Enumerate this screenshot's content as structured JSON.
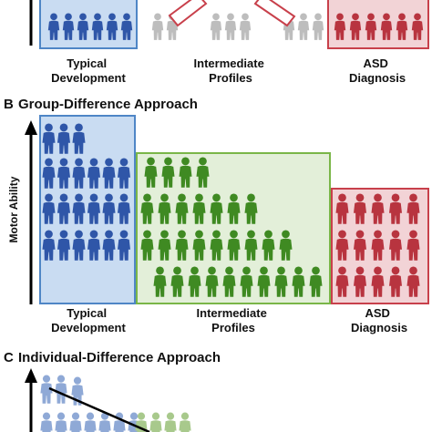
{
  "colors": {
    "typical_fill": "#c9dcf2",
    "typical_stroke": "#4f86c6",
    "typical_figure": "#2f56a8",
    "typical_figure_faded": "#8fa9d6",
    "intermediate_fill": "#e3efd9",
    "intermediate_stroke": "#7ab648",
    "intermediate_figure": "#3f8a22",
    "intermediate_figure_faded": "#a8c98c",
    "asd_fill": "#f2d3d6",
    "asd_stroke": "#c8404b",
    "asd_figure": "#b8343f",
    "gray_figure": "#bdbdbd",
    "axis": "#000000",
    "slope_line": "#000000"
  },
  "panel_a": {
    "label_typical": "Typical\nDevelopment",
    "label_intermediate": "Intermediate\nProfiles",
    "label_asd": "ASD\nDiagnosis"
  },
  "panel_b": {
    "letter": "B",
    "title": "Group-Difference Approach",
    "y_axis_label": "Motor Ability",
    "label_typical": "Typical\nDevelopment",
    "label_intermediate": "Intermediate\nProfiles",
    "label_asd": "ASD\nDiagnosis",
    "groups": [
      {
        "name": "Typical Development",
        "rows": [
          3,
          6,
          6,
          6
        ]
      },
      {
        "name": "Intermediate Profiles",
        "rows": [
          4,
          7,
          9,
          10
        ]
      },
      {
        "name": "ASD Diagnosis",
        "rows": [
          5,
          5,
          5
        ]
      }
    ]
  },
  "panel_c": {
    "letter": "C",
    "title": "Individual-Difference Approach"
  },
  "icons": [
    "person-icon",
    "arrow-up-icon"
  ]
}
